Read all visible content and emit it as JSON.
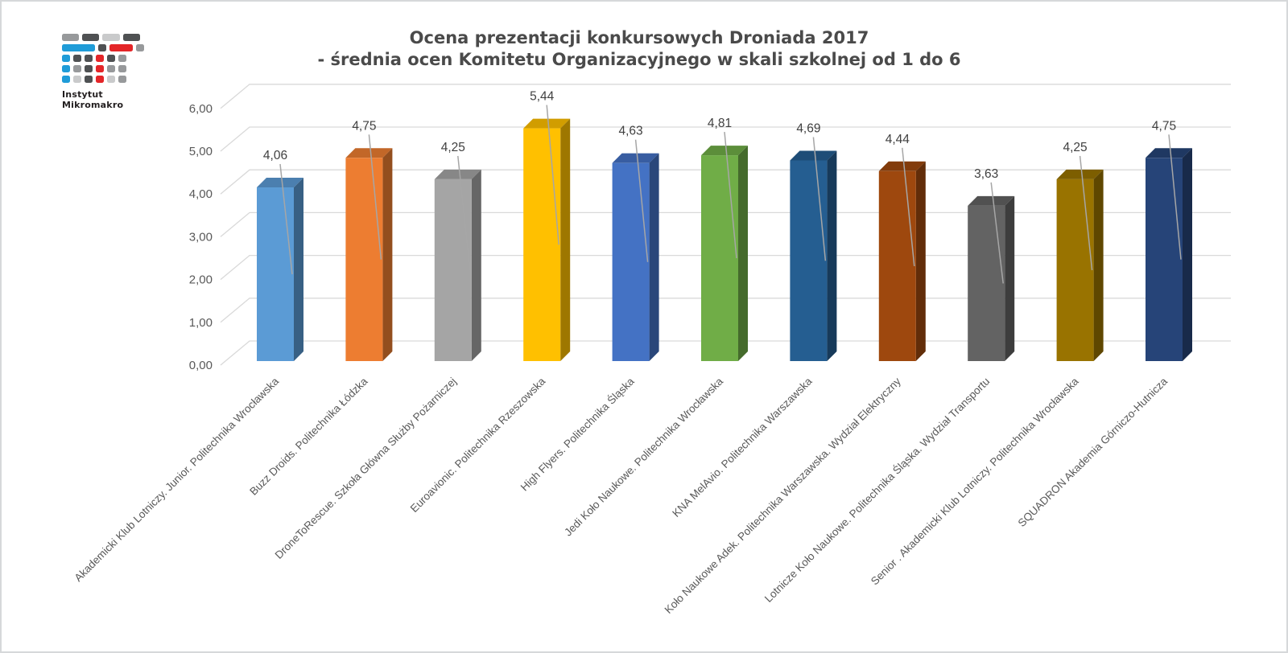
{
  "page": {
    "background": "#ffffff",
    "border_color": "#d6d8da"
  },
  "logo": {
    "line1": "Instytut",
    "line2": "Mikromakro",
    "colors": {
      "blue": "#1f9cd8",
      "red": "#e42528",
      "light": "#c9cacb",
      "gray": "#97999b",
      "dark": "#4f5153"
    },
    "grid": [
      [
        {
          "c": "gray",
          "w": 1.8
        },
        {
          "c": "dark",
          "w": 1.8
        },
        {
          "c": "light",
          "w": 1.8
        },
        {
          "c": "dark",
          "w": 1.8
        }
      ],
      [
        {
          "c": "blue",
          "w": 3.2
        },
        {
          "c": "dark",
          "w": 1
        },
        {
          "c": "red",
          "w": 2.4
        },
        {
          "c": "gray",
          "w": 1
        }
      ],
      [
        {
          "c": "blue",
          "w": 1
        },
        {
          "c": "dark",
          "w": 1
        },
        {
          "c": "dark",
          "w": 1
        },
        {
          "c": "red",
          "w": 1
        },
        {
          "c": "dark",
          "w": 1
        },
        {
          "c": "gray",
          "w": 1
        }
      ],
      [
        {
          "c": "blue",
          "w": 1
        },
        {
          "c": "gray",
          "w": 1
        },
        {
          "c": "dark",
          "w": 1
        },
        {
          "c": "red",
          "w": 1
        },
        {
          "c": "gray",
          "w": 1
        },
        {
          "c": "gray",
          "w": 1
        }
      ],
      [
        {
          "c": "blue",
          "w": 1
        },
        {
          "c": "light",
          "w": 1
        },
        {
          "c": "dark",
          "w": 1
        },
        {
          "c": "red",
          "w": 1
        },
        {
          "c": "light",
          "w": 1
        },
        {
          "c": "gray",
          "w": 1
        }
      ]
    ]
  },
  "chart_data": {
    "type": "bar",
    "style_3d": true,
    "title_lines": [
      "Ocena prezentacji konkursowych Droniada 2017",
      "- średnia ocen Komitetu Organizacyjnego w skali szkolnej od 1 do 6"
    ],
    "categories": [
      "Akademicki Klub Lotniczy. Junior. Politechnika Wrocławska",
      "Buzz Droids. Politechnika Łódzka",
      "DroneToRescue. Szkoła Główna Służby Pożarniczej",
      "Euroavionic. Politechnika Rzeszowska",
      "High Flyers. Politechnika Śląska",
      "Jedi Koło Naukowe. Politechnika Wrocławska",
      "KNA MelAvio. Politechnika Warszawska",
      "Koło Naukowe Adek. Politechnika Warszawska. Wydział Elektryczny",
      "Lotnicze Koło Naukowe. Politechnika Śląska. Wydział Transportu",
      "Senior . Akademicki Klub Lotniczy. Politechnika Wrocławska",
      "SQUADRON Akademia Górniczo-Hutnicza"
    ],
    "values": [
      4.06,
      4.75,
      4.25,
      5.44,
      4.63,
      4.81,
      4.69,
      4.44,
      3.63,
      4.25,
      4.75
    ],
    "value_labels": [
      "4,06",
      "4,75",
      "4,25",
      "5,44",
      "4,63",
      "4,81",
      "4,69",
      "4,44",
      "3,63",
      "4,25",
      "4,75"
    ],
    "bar_colors": [
      "#5B9BD5",
      "#ED7D31",
      "#A5A5A5",
      "#FFC000",
      "#4472C4",
      "#70AD47",
      "#255E91",
      "#9E480E",
      "#636363",
      "#997300",
      "#264478"
    ],
    "ylim": [
      0,
      6
    ],
    "y_tick_labels": [
      "0,00",
      "1,00",
      "2,00",
      "3,00",
      "4,00",
      "5,00",
      "6,00"
    ],
    "grid": true,
    "legend": "none",
    "colors": {
      "gridline": "#D9D9D9",
      "tick_text": "#595959",
      "category_text": "#595959",
      "value_label_text": "#404040",
      "title_text": "#4a4a4a",
      "leader_line": "#A6A6A6"
    }
  }
}
